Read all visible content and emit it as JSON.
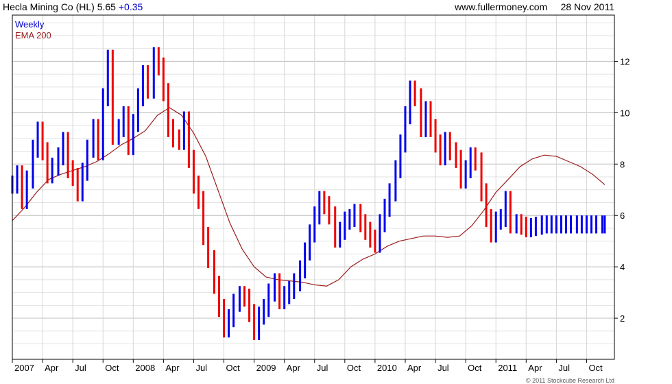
{
  "header": {
    "ticker": "Hecla Mining Co (HL)",
    "price": "5.65",
    "change": "+0.35",
    "source": "www.fullermoney.com",
    "date": "28 Nov 2011"
  },
  "copyright": "© 2011 Stockcube Research Ltd",
  "chart_data": {
    "type": "line",
    "title": "Hecla Mining Co (HL) 5.65 +0.35",
    "legend": [
      "Weekly",
      "EMA 200"
    ],
    "legend_position": "top-left",
    "colors": {
      "up": "#0000ee",
      "down": "#ee0000",
      "ema": "#9b1c1c",
      "grid": "#cccccc"
    },
    "grid": true,
    "ylim": [
      0.4,
      13.8
    ],
    "yticks": [
      2,
      4,
      6,
      8,
      10,
      12
    ],
    "xlim": [
      2007.0,
      2011.98
    ],
    "xticks": [
      {
        "x": 2007.0,
        "label": "2007"
      },
      {
        "x": 2007.25,
        "label": "Apr"
      },
      {
        "x": 2007.5,
        "label": "Jul"
      },
      {
        "x": 2007.75,
        "label": "Oct"
      },
      {
        "x": 2008.0,
        "label": "2008"
      },
      {
        "x": 2008.25,
        "label": "Apr"
      },
      {
        "x": 2008.5,
        "label": "Jul"
      },
      {
        "x": 2008.75,
        "label": "Oct"
      },
      {
        "x": 2009.0,
        "label": "2009"
      },
      {
        "x": 2009.25,
        "label": "Apr"
      },
      {
        "x": 2009.5,
        "label": "Jul"
      },
      {
        "x": 2009.75,
        "label": "Oct"
      },
      {
        "x": 2010.0,
        "label": "2010"
      },
      {
        "x": 2010.25,
        "label": "Apr"
      },
      {
        "x": 2010.5,
        "label": "Jul"
      },
      {
        "x": 2010.75,
        "label": "Oct"
      },
      {
        "x": 2011.0,
        "label": "2011"
      },
      {
        "x": 2011.25,
        "label": "Apr"
      },
      {
        "x": 2011.5,
        "label": "Jul"
      },
      {
        "x": 2011.75,
        "label": "Oct"
      }
    ],
    "series": [
      {
        "name": "Weekly",
        "x": [
          2007.0,
          2007.04,
          2007.08,
          2007.12,
          2007.17,
          2007.21,
          2007.25,
          2007.29,
          2007.33,
          2007.38,
          2007.42,
          2007.46,
          2007.5,
          2007.54,
          2007.58,
          2007.62,
          2007.67,
          2007.71,
          2007.75,
          2007.79,
          2007.83,
          2007.88,
          2007.92,
          2007.96,
          2008.0,
          2008.04,
          2008.08,
          2008.12,
          2008.17,
          2008.21,
          2008.25,
          2008.29,
          2008.33,
          2008.38,
          2008.42,
          2008.46,
          2008.5,
          2008.54,
          2008.58,
          2008.62,
          2008.67,
          2008.71,
          2008.75,
          2008.79,
          2008.83,
          2008.88,
          2008.92,
          2008.96,
          2009.0,
          2009.04,
          2009.08,
          2009.12,
          2009.17,
          2009.21,
          2009.25,
          2009.29,
          2009.33,
          2009.38,
          2009.42,
          2009.46,
          2009.5,
          2009.54,
          2009.58,
          2009.62,
          2009.67,
          2009.71,
          2009.75,
          2009.79,
          2009.83,
          2009.88,
          2009.92,
          2009.96,
          2010.0,
          2010.04,
          2010.08,
          2010.12,
          2010.17,
          2010.21,
          2010.25,
          2010.29,
          2010.33,
          2010.38,
          2010.42,
          2010.46,
          2010.5,
          2010.54,
          2010.58,
          2010.62,
          2010.67,
          2010.71,
          2010.75,
          2010.79,
          2010.83,
          2010.88,
          2010.92,
          2010.96,
          2011.0,
          2011.04,
          2011.08,
          2011.12,
          2011.17,
          2011.21,
          2011.25,
          2011.29,
          2011.33,
          2011.38,
          2011.42,
          2011.46,
          2011.5,
          2011.54,
          2011.58,
          2011.62,
          2011.67,
          2011.71,
          2011.75,
          2011.79,
          2011.83,
          2011.88,
          2011.9
        ],
        "close": [
          7.2,
          7.6,
          6.6,
          7.4,
          8.6,
          9.3,
          8.5,
          7.6,
          7.9,
          8.3,
          8.9,
          7.8,
          7.5,
          6.9,
          7.7,
          8.6,
          9.4,
          8.5,
          10.6,
          12.1,
          9.1,
          9.4,
          9.9,
          8.7,
          9.6,
          10.6,
          11.5,
          10.9,
          12.2,
          11.8,
          10.8,
          9.4,
          9.0,
          8.9,
          9.7,
          8.2,
          7.2,
          6.6,
          5.2,
          4.3,
          3.3,
          2.4,
          1.6,
          2.0,
          2.6,
          2.9,
          2.8,
          2.2,
          1.5,
          2.1,
          2.4,
          3.0,
          3.4,
          2.7,
          2.9,
          3.1,
          3.4,
          3.9,
          4.6,
          5.3,
          6.0,
          6.6,
          6.4,
          6.0,
          5.1,
          5.4,
          5.8,
          5.9,
          6.1,
          5.7,
          5.4,
          5.1,
          4.9,
          5.7,
          6.3,
          6.9,
          7.8,
          8.8,
          9.9,
          10.9,
          10.6,
          9.4,
          10.1,
          9.4,
          8.8,
          8.3,
          8.9,
          8.5,
          8.2,
          7.4,
          7.8,
          8.3,
          8.1,
          6.9,
          5.9,
          5.3,
          5.8,
          5.9,
          6.6,
          5.65,
          5.7,
          5.6,
          5.5,
          5.55,
          5.6,
          5.65,
          5.65,
          5.65,
          5.65,
          5.65,
          5.65,
          5.65,
          5.65,
          5.65,
          5.65,
          5.65,
          5.65,
          5.65,
          5.65
        ]
      },
      {
        "name": "EMA 200",
        "x": [
          2007.0,
          2007.1,
          2007.2,
          2007.3,
          2007.4,
          2007.5,
          2007.6,
          2007.7,
          2007.8,
          2007.9,
          2008.0,
          2008.1,
          2008.2,
          2008.3,
          2008.4,
          2008.5,
          2008.6,
          2008.7,
          2008.8,
          2008.9,
          2009.0,
          2009.1,
          2009.2,
          2009.3,
          2009.4,
          2009.5,
          2009.6,
          2009.7,
          2009.8,
          2009.9,
          2010.0,
          2010.1,
          2010.2,
          2010.3,
          2010.4,
          2010.5,
          2010.6,
          2010.7,
          2010.8,
          2010.9,
          2011.0,
          2011.1,
          2011.2,
          2011.3,
          2011.4,
          2011.5,
          2011.6,
          2011.7,
          2011.8,
          2011.85,
          2011.9
        ],
        "values": [
          5.8,
          6.3,
          6.9,
          7.4,
          7.6,
          7.75,
          7.9,
          8.1,
          8.4,
          8.75,
          9.0,
          9.3,
          9.9,
          10.2,
          9.9,
          9.2,
          8.3,
          7.0,
          5.7,
          4.7,
          4.0,
          3.6,
          3.5,
          3.45,
          3.4,
          3.3,
          3.25,
          3.5,
          4.0,
          4.3,
          4.5,
          4.8,
          5.0,
          5.1,
          5.2,
          5.2,
          5.15,
          5.2,
          5.6,
          6.2,
          6.9,
          7.4,
          7.9,
          8.2,
          8.35,
          8.3,
          8.1,
          7.9,
          7.6,
          7.4,
          7.2
        ]
      }
    ]
  }
}
